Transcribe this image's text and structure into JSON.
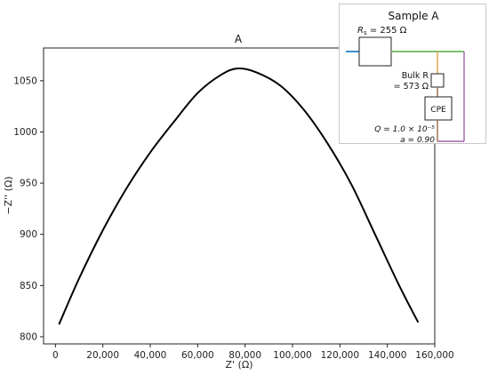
{
  "chart_data": {
    "type": "line",
    "title": "A",
    "xlabel": "Z' (Ω)",
    "ylabel": "−Z'' (Ω)",
    "xlim": [
      -5000,
      160000
    ],
    "ylim": [
      793,
      1082
    ],
    "x_ticks": [
      "0",
      "20,000",
      "40,000",
      "60,000",
      "80,000",
      "100,000",
      "120,000",
      "140,000",
      "160,000"
    ],
    "x_tick_values": [
      0,
      20000,
      40000,
      60000,
      80000,
      100000,
      120000,
      140000,
      160000
    ],
    "y_ticks": [
      "800",
      "850",
      "900",
      "950",
      "1000",
      "1050"
    ],
    "y_tick_values": [
      800,
      850,
      900,
      950,
      1000,
      1050
    ],
    "grid": false,
    "series": [
      {
        "x": [
          1500,
          10000,
          20000,
          30000,
          40000,
          50000,
          60000,
          70000,
          77000,
          85000,
          95000,
          105000,
          115000,
          125000,
          135000,
          145000,
          153000
        ],
        "y": [
          812,
          857,
          904,
          945,
          980,
          1010,
          1038,
          1056,
          1062,
          1058,
          1045,
          1021,
          988,
          948,
          899,
          850,
          814
        ],
        "color": "#000000"
      }
    ]
  },
  "inset": {
    "title": "Sample A",
    "rs_label": "R",
    "rs_sub": "s",
    "rs_value": " = 255 Ω",
    "bulk_label": "Bulk R",
    "bulk_value": "= 573 Ω",
    "cpe_label": "CPE",
    "q_label": "Q = 1.0 × 10⁻⁵",
    "a_label": "a = 0.90",
    "wire_colors": {
      "blue": "#3a8fd0",
      "orange": "#e0a040",
      "green": "#7cbf6a",
      "brown": "#9a6a48",
      "purple": "#a064a8"
    }
  }
}
